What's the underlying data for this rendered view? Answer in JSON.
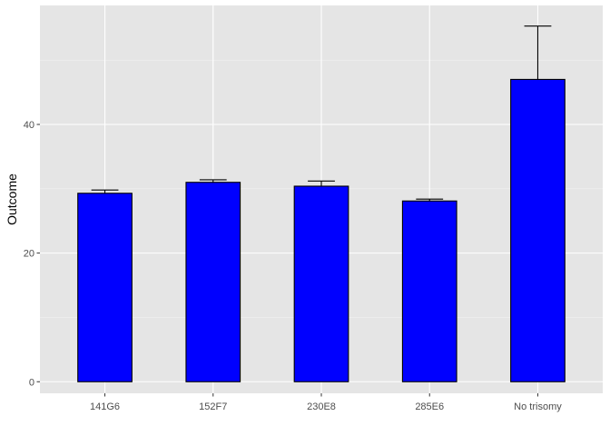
{
  "chart_data": {
    "type": "bar",
    "title": "",
    "xlabel": "",
    "ylabel": "Outcome",
    "categories": [
      "141G6",
      "152F7",
      "230E8",
      "285E6",
      "No trisomy"
    ],
    "values": [
      29.3,
      31.0,
      30.4,
      28.1,
      47.0
    ],
    "error_upper": [
      29.8,
      31.4,
      31.2,
      28.4,
      55.3
    ],
    "ylim": [
      -1.8,
      58.5
    ],
    "yticks": [
      0,
      20,
      40
    ],
    "ytick_labels": [
      "0",
      "20",
      "40"
    ],
    "grid": true,
    "legend": "none",
    "colors": {
      "bar_fill": "#0000ff",
      "bar_stroke": "#000000",
      "panel_bg": "#e5e5e5",
      "grid_major": "#ffffff",
      "grid_minor": "#f2f2f2",
      "tick_text": "#4d4d4d",
      "axis_title_text": "#000000"
    }
  }
}
